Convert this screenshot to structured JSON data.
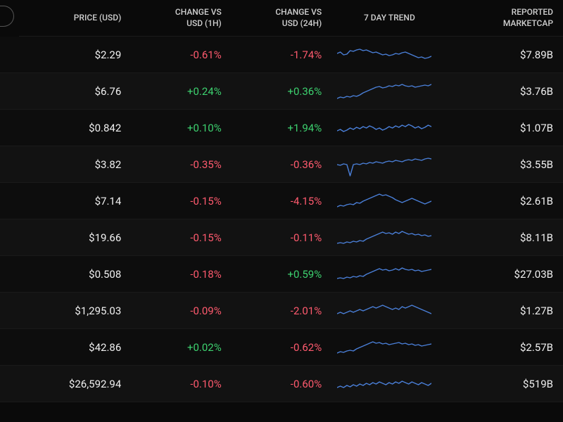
{
  "colors": {
    "background": "#0a0a0a",
    "row_alt": "#121212",
    "row_base": "#0d0d0d",
    "text": "#f0f0f0",
    "header_text": "#d0d0d0",
    "positive": "#3dd16f",
    "negative": "#ff5a6e",
    "sparkline": "#4a7fd8",
    "grid": "#1a1a1a"
  },
  "columns": [
    {
      "key": "price",
      "label": "PRICE (USD)"
    },
    {
      "key": "change1h",
      "label": "CHANGE VS\nUSD (1H)"
    },
    {
      "key": "change24h",
      "label": "CHANGE VS\nUSD (24H)"
    },
    {
      "key": "trend",
      "label": "7 DAY TREND"
    },
    {
      "key": "marketcap",
      "label": "REPORTED\nMARKETCAP"
    }
  ],
  "rows": [
    {
      "price": "$2.29",
      "change1h": {
        "text": "-0.61%",
        "dir": "neg"
      },
      "change24h": {
        "text": "-1.74%",
        "dir": "neg"
      },
      "trend": [
        18,
        16,
        20,
        19,
        14,
        15,
        13,
        12,
        14,
        13,
        15,
        17,
        16,
        18,
        20,
        19,
        21,
        20,
        18,
        19,
        17,
        16,
        18,
        20,
        22,
        24,
        23,
        25,
        24,
        22
      ],
      "marketcap": "$7.89B"
    },
    {
      "price": "$6.76",
      "change1h": {
        "text": "+0.24%",
        "dir": "pos"
      },
      "change24h": {
        "text": "+0.36%",
        "dir": "pos"
      },
      "trend": [
        30,
        28,
        29,
        27,
        28,
        26,
        27,
        25,
        22,
        20,
        18,
        16,
        14,
        13,
        15,
        14,
        12,
        13,
        11,
        12,
        10,
        12,
        13,
        12,
        14,
        13,
        12,
        11,
        12,
        10
      ],
      "marketcap": "$3.76B"
    },
    {
      "price": "$0.842",
      "change1h": {
        "text": "+0.10%",
        "dir": "pos"
      },
      "change24h": {
        "text": "+1.94%",
        "dir": "pos"
      },
      "trend": [
        24,
        22,
        25,
        23,
        20,
        22,
        19,
        21,
        18,
        20,
        17,
        19,
        22,
        20,
        23,
        21,
        18,
        20,
        17,
        19,
        16,
        18,
        15,
        17,
        20,
        18,
        21,
        19,
        16,
        18
      ],
      "marketcap": "$1.07B"
    },
    {
      "price": "$3.82",
      "change1h": {
        "text": "-0.35%",
        "dir": "neg"
      },
      "change24h": {
        "text": "-0.36%",
        "dir": "neg"
      },
      "trend": [
        20,
        21,
        19,
        20,
        36,
        20,
        19,
        20,
        18,
        19,
        17,
        18,
        16,
        17,
        18,
        16,
        15,
        16,
        14,
        15,
        16,
        14,
        13,
        14,
        12,
        13,
        14,
        12,
        11,
        12
      ],
      "marketcap": "$3.55B"
    },
    {
      "price": "$7.14",
      "change1h": {
        "text": "-0.15%",
        "dir": "neg"
      },
      "change24h": {
        "text": "-4.15%",
        "dir": "neg"
      },
      "trend": [
        28,
        26,
        27,
        25,
        24,
        25,
        22,
        23,
        20,
        18,
        16,
        14,
        12,
        10,
        12,
        11,
        13,
        15,
        18,
        20,
        22,
        20,
        18,
        16,
        18,
        20,
        22,
        24,
        22,
        20
      ],
      "marketcap": "$2.61B"
    },
    {
      "price": "$19.66",
      "change1h": {
        "text": "-0.15%",
        "dir": "neg"
      },
      "change24h": {
        "text": "-0.11%",
        "dir": "neg"
      },
      "trend": [
        28,
        27,
        28,
        26,
        27,
        25,
        26,
        24,
        25,
        22,
        20,
        18,
        16,
        14,
        12,
        14,
        13,
        15,
        12,
        14,
        11,
        13,
        15,
        14,
        16,
        15,
        17,
        16,
        18,
        17
      ],
      "marketcap": "$8.11B"
    },
    {
      "price": "$0.508",
      "change1h": {
        "text": "-0.18%",
        "dir": "neg"
      },
      "change24h": {
        "text": "+0.59%",
        "dir": "pos"
      },
      "trend": [
        26,
        25,
        26,
        24,
        25,
        23,
        24,
        22,
        23,
        20,
        18,
        16,
        14,
        12,
        14,
        13,
        15,
        14,
        12,
        14,
        11,
        13,
        14,
        13,
        15,
        14,
        16,
        15,
        14,
        13
      ],
      "marketcap": "$27.03B"
    },
    {
      "price": "$1,295.03",
      "change1h": {
        "text": "-0.09%",
        "dir": "neg"
      },
      "change24h": {
        "text": "-2.01%",
        "dir": "neg"
      },
      "trend": [
        24,
        22,
        24,
        22,
        20,
        22,
        20,
        18,
        20,
        18,
        16,
        14,
        16,
        14,
        12,
        14,
        16,
        18,
        16,
        18,
        14,
        16,
        14,
        12,
        14,
        16,
        18,
        20,
        22,
        24
      ],
      "marketcap": "$1.27B"
    },
    {
      "price": "$42.86",
      "change1h": {
        "text": "+0.02%",
        "dir": "pos"
      },
      "change24h": {
        "text": "-0.62%",
        "dir": "neg"
      },
      "trend": [
        28,
        26,
        27,
        25,
        24,
        25,
        22,
        20,
        18,
        16,
        14,
        12,
        14,
        13,
        15,
        14,
        16,
        15,
        14,
        13,
        15,
        14,
        16,
        15,
        17,
        16,
        18,
        17,
        16,
        15
      ],
      "marketcap": "$2.57B"
    },
    {
      "price": "$26,592.94",
      "change1h": {
        "text": "-0.10%",
        "dir": "neg"
      },
      "change24h": {
        "text": "-0.60%",
        "dir": "neg"
      },
      "trend": [
        25,
        23,
        25,
        22,
        24,
        21,
        23,
        20,
        22,
        19,
        21,
        18,
        20,
        17,
        19,
        21,
        18,
        20,
        17,
        19,
        16,
        18,
        20,
        17,
        19,
        21,
        18,
        20,
        22,
        19
      ],
      "marketcap": "$519B"
    }
  ],
  "sparkline_style": {
    "width": 134,
    "height": 40,
    "stroke_width": 1.4,
    "stroke_color": "#4a7fd8"
  }
}
